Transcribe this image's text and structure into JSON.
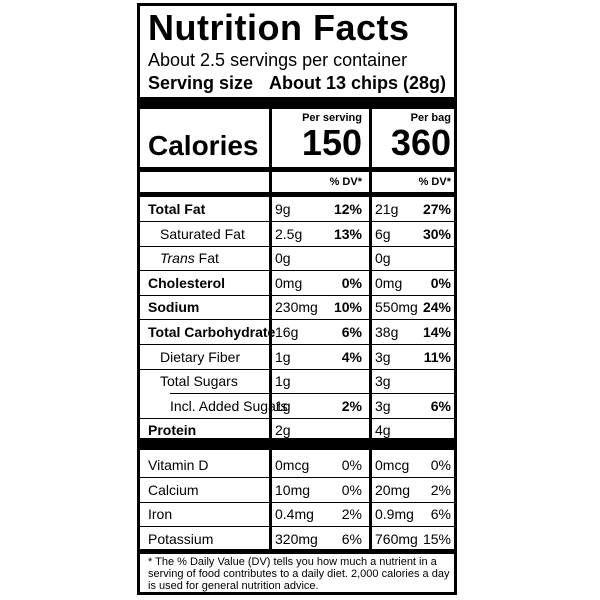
{
  "title": "Nutrition Facts",
  "servings_per_container": "About 2.5 servings per container",
  "serving_size": {
    "label": "Serving size",
    "value": "About 13 chips (28g)"
  },
  "columns": {
    "per_serving_header": "Per serving",
    "per_bag_header": "Per bag",
    "dv_header": "% DV*"
  },
  "calories": {
    "label": "Calories",
    "per_serving": "150",
    "per_bag": "360"
  },
  "nutrients": [
    {
      "name": "Total Fat",
      "serving_amount": "9g",
      "serving_dv": "12%",
      "bag_amount": "21g",
      "bag_dv": "27%"
    },
    {
      "name": "Saturated Fat",
      "serving_amount": "2.5g",
      "serving_dv": "13%",
      "bag_amount": "6g",
      "bag_dv": "30%"
    },
    {
      "name": "Trans Fat",
      "serving_amount": "0g",
      "serving_dv": "",
      "bag_amount": "0g",
      "bag_dv": ""
    },
    {
      "name": "Cholesterol",
      "serving_amount": "0mg",
      "serving_dv": "0%",
      "bag_amount": "0mg",
      "bag_dv": "0%"
    },
    {
      "name": "Sodium",
      "serving_amount": "230mg",
      "serving_dv": "10%",
      "bag_amount": "550mg",
      "bag_dv": "24%"
    },
    {
      "name": "Total Carbohydrate",
      "serving_amount": "16g",
      "serving_dv": "6%",
      "bag_amount": "38g",
      "bag_dv": "14%"
    },
    {
      "name": "Dietary Fiber",
      "serving_amount": "1g",
      "serving_dv": "4%",
      "bag_amount": "3g",
      "bag_dv": "11%"
    },
    {
      "name": "Total Sugars",
      "serving_amount": "1g",
      "serving_dv": "",
      "bag_amount": "3g",
      "bag_dv": ""
    },
    {
      "name": "Incl. Added Sugars",
      "serving_amount": "1g",
      "serving_dv": "2%",
      "bag_amount": "3g",
      "bag_dv": "6%"
    },
    {
      "name": "Protein",
      "serving_amount": "2g",
      "serving_dv": "",
      "bag_amount": "4g",
      "bag_dv": ""
    }
  ],
  "vitamins": [
    {
      "name": "Vitamin D",
      "serving_amount": "0mcg",
      "serving_dv": "0%",
      "bag_amount": "0mcg",
      "bag_dv": "0%"
    },
    {
      "name": "Calcium",
      "serving_amount": "10mg",
      "serving_dv": "0%",
      "bag_amount": "20mg",
      "bag_dv": "2%"
    },
    {
      "name": "Iron",
      "serving_amount": "0.4mg",
      "serving_dv": "2%",
      "bag_amount": "0.9mg",
      "bag_dv": "6%"
    },
    {
      "name": "Potassium",
      "serving_amount": "320mg",
      "serving_dv": "6%",
      "bag_amount": "760mg",
      "bag_dv": "15%"
    }
  ],
  "footnote": "* The % Daily Value (DV) tells you how much a nutrient in a serving of food contributes to a daily diet. 2,000 calories a day is used for general nutrition advice."
}
